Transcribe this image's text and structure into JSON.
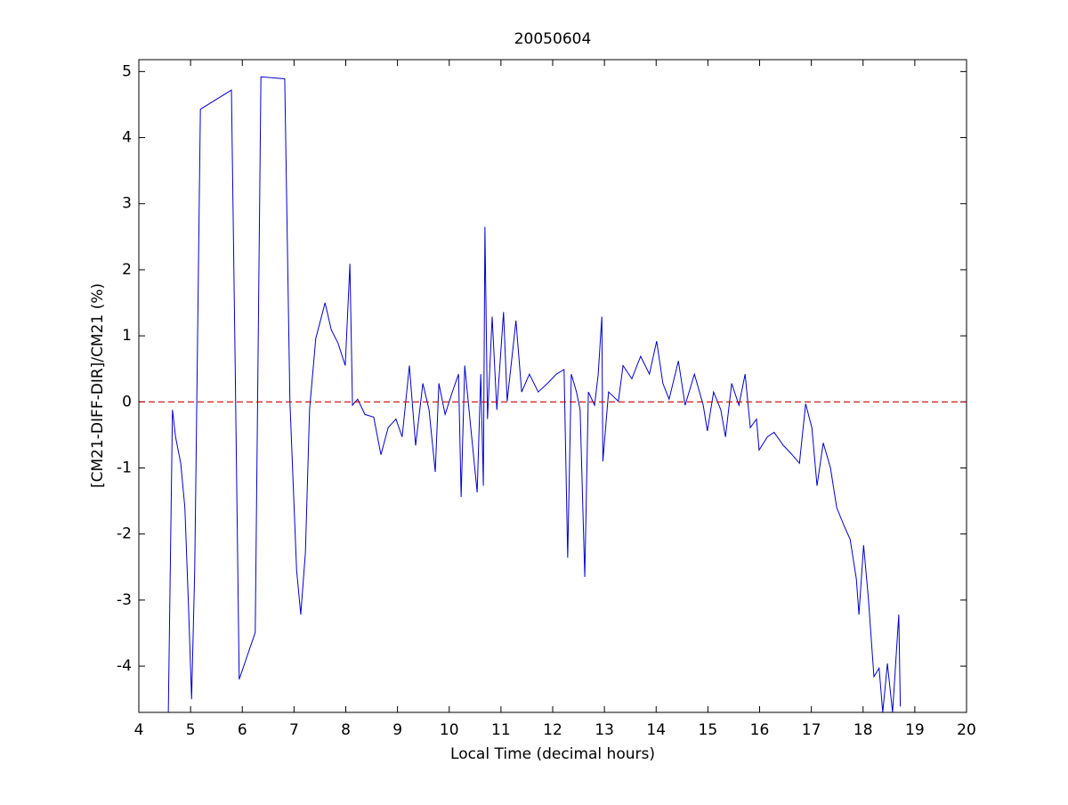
{
  "chart_data": {
    "type": "line",
    "title": "20050604",
    "x_label": "Local Time (decimal hours)",
    "y_label": "[CM21-DIFF-DIR]/CM21 (%)",
    "xlim": [
      4,
      20
    ],
    "ylim": [
      -4.7,
      5.18
    ],
    "xticks": [
      4,
      5,
      6,
      7,
      8,
      9,
      10,
      11,
      12,
      13,
      14,
      15,
      16,
      17,
      18,
      19,
      20
    ],
    "yticks": [
      -4,
      -3,
      -2,
      -1,
      0,
      1,
      2,
      3,
      4,
      5
    ],
    "reference_line": {
      "y": 0,
      "color": "#cc0000",
      "style": "dashed"
    },
    "x": [
      4.57,
      4.65,
      4.71,
      4.81,
      4.89,
      4.96,
      5.02,
      5.08,
      5.19,
      5.79,
      5.86,
      5.94,
      6.25,
      6.36,
      6.82,
      6.92,
      7.05,
      7.13,
      7.22,
      7.3,
      7.42,
      7.6,
      7.72,
      7.85,
      7.99,
      8.08,
      8.13,
      8.23,
      8.37,
      8.54,
      8.68,
      8.82,
      8.97,
      9.09,
      9.23,
      9.35,
      9.49,
      9.61,
      9.73,
      9.8,
      9.92,
      10.06,
      10.18,
      10.23,
      10.3,
      10.4,
      10.54,
      10.61,
      10.66,
      10.69,
      10.74,
      10.83,
      10.92,
      11.05,
      11.12,
      11.29,
      11.4,
      11.55,
      11.72,
      11.9,
      12.07,
      12.22,
      12.29,
      12.36,
      12.46,
      12.53,
      12.62,
      12.69,
      12.81,
      12.88,
      12.95,
      12.97,
      13.08,
      13.27,
      13.36,
      13.53,
      13.7,
      13.87,
      14.01,
      14.13,
      14.25,
      14.43,
      14.56,
      14.74,
      14.91,
      14.99,
      15.11,
      15.25,
      15.34,
      15.46,
      15.6,
      15.72,
      15.82,
      15.94,
      15.99,
      16.15,
      16.28,
      16.46,
      16.63,
      16.77,
      16.89,
      17.01,
      17.11,
      17.23,
      17.37,
      17.49,
      17.63,
      17.75,
      17.87,
      17.92,
      18.01,
      18.1,
      18.21,
      18.31,
      18.38,
      18.47,
      18.57,
      18.69,
      18.72
    ],
    "series": [
      {
        "color": "#0000cc",
        "values": [
          -4.7,
          -0.12,
          -0.53,
          -0.93,
          -1.6,
          -3.09,
          -4.5,
          -2.55,
          4.43,
          4.72,
          0.69,
          -4.2,
          -3.49,
          4.92,
          4.89,
          0.01,
          -2.55,
          -3.22,
          -2.28,
          -0.12,
          0.96,
          1.5,
          1.09,
          0.89,
          0.55,
          2.09,
          -0.05,
          0.04,
          -0.19,
          -0.23,
          -0.8,
          -0.39,
          -0.26,
          -0.53,
          0.55,
          -0.66,
          0.28,
          -0.12,
          -1.06,
          0.28,
          -0.19,
          0.15,
          0.42,
          -1.44,
          0.55,
          -0.26,
          -1.37,
          0.42,
          -1.27,
          2.65,
          -0.26,
          1.29,
          -0.12,
          1.36,
          0.01,
          1.23,
          0.15,
          0.42,
          0.15,
          0.28,
          0.42,
          0.49,
          -2.36,
          0.42,
          0.15,
          -0.12,
          -2.65,
          0.15,
          -0.05,
          0.42,
          1.29,
          -0.9,
          0.15,
          0.01,
          0.55,
          0.35,
          0.69,
          0.42,
          0.92,
          0.28,
          0.04,
          0.62,
          -0.05,
          0.42,
          -0.05,
          -0.44,
          0.15,
          -0.12,
          -0.53,
          0.28,
          -0.05,
          0.42,
          -0.39,
          -0.26,
          -0.73,
          -0.53,
          -0.46,
          -0.66,
          -0.8,
          -0.93,
          -0.03,
          -0.39,
          -1.27,
          -0.62,
          -1.0,
          -1.6,
          -1.87,
          -2.08,
          -2.68,
          -3.22,
          -2.17,
          -2.95,
          -4.16,
          -4.03,
          -4.7,
          -3.96,
          -4.7,
          -3.22,
          -4.61
        ]
      }
    ]
  }
}
